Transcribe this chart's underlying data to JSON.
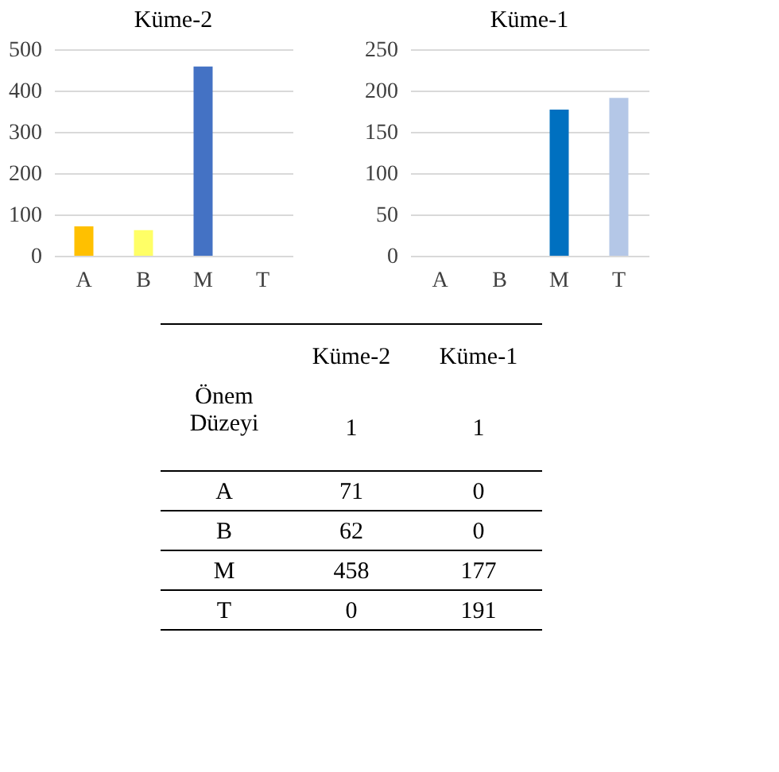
{
  "chart_data": [
    {
      "type": "bar",
      "title": "Küme-2",
      "categories": [
        "A",
        "B",
        "M",
        "T"
      ],
      "values": [
        71,
        62,
        458,
        0
      ],
      "colors": [
        "#ffc000",
        "#ffff66",
        "#4472c4",
        "#a5a5a5"
      ],
      "ylim": [
        0,
        500
      ],
      "yticks": [
        0,
        100,
        200,
        300,
        400,
        500
      ],
      "grid": "y"
    },
    {
      "type": "bar",
      "title": "Küme-1",
      "categories": [
        "A",
        "B",
        "M",
        "T"
      ],
      "values": [
        0,
        0,
        177,
        191
      ],
      "colors": [
        "#ed7d31",
        "#a5a5a5",
        "#0070c0",
        "#b4c7e7"
      ],
      "ylim": [
        0,
        250
      ],
      "yticks": [
        0,
        50,
        100,
        150,
        200,
        250
      ],
      "grid": "y"
    },
    {
      "type": "other",
      "categories": [
        "A",
        "B",
        "M",
        "T"
      ],
      "series": [
        {
          "name": "Küme-2",
          "values": [
            71,
            62,
            458,
            0
          ]
        },
        {
          "name": "Küme-1",
          "values": [
            0,
            0,
            177,
            191
          ]
        }
      ],
      "data_labels": true,
      "annotations": [
        "Önem Düzeyi",
        "1",
        "1"
      ]
    }
  ]
}
